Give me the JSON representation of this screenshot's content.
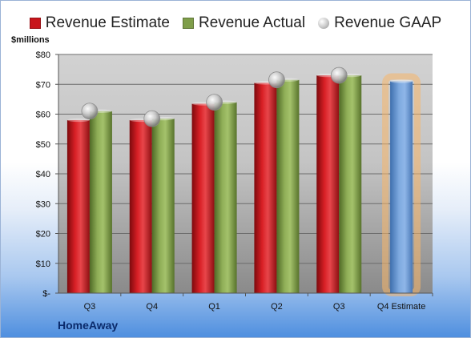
{
  "legend": {
    "estimate_label": "Revenue Estimate",
    "actual_label": "Revenue Actual",
    "gaap_label": "Revenue GAAP"
  },
  "unit_label": "$millions",
  "company": "HomeAway",
  "colors": {
    "estimate": "#c8151b",
    "actual": "#7f9e4a",
    "forecast": "#6f9ed6",
    "forecast_glow": "#f7b66a",
    "gaap_marker": "#b8b8b8"
  },
  "chart_data": {
    "type": "bar",
    "categories": [
      "Q3",
      "Q4",
      "Q1",
      "Q2",
      "Q3",
      "Q4 Estimate"
    ],
    "series": [
      {
        "name": "Revenue Estimate",
        "values": [
          58,
          58,
          63.5,
          70.5,
          73,
          null
        ]
      },
      {
        "name": "Revenue Actual",
        "values": [
          61,
          58.5,
          64,
          71.5,
          73,
          null
        ]
      },
      {
        "name": "Revenue GAAP",
        "values": [
          61,
          58.5,
          64,
          71.5,
          73,
          null
        ]
      }
    ],
    "forecast": {
      "category": "Q4 Estimate",
      "value": 71
    },
    "ylabel": "$millions",
    "ylim": [
      0,
      80
    ],
    "yticks": [
      0,
      10,
      20,
      30,
      40,
      50,
      60,
      70,
      80
    ],
    "ytick_labels": [
      "$-",
      "$10",
      "$20",
      "$30",
      "$40",
      "$50",
      "$60",
      "$70",
      "$80"
    ],
    "grid": true,
    "legend_position": "top"
  }
}
